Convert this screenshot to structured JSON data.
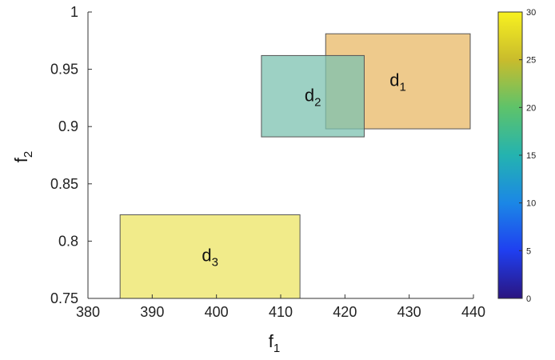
{
  "chart_data": {
    "type": "rectangle-regions",
    "xlabel": {
      "base": "f",
      "sub": "1"
    },
    "ylabel": {
      "base": "f",
      "sub": "2"
    },
    "xlim": [
      380,
      440
    ],
    "ylim": [
      0.75,
      1.0
    ],
    "xticks": [
      "380",
      "390",
      "400",
      "410",
      "420",
      "430",
      "440"
    ],
    "xtick_values": [
      380,
      390,
      400,
      410,
      420,
      430,
      440
    ],
    "yticks": [
      "0.75",
      "0.8",
      "0.85",
      "0.9",
      "0.95",
      "1"
    ],
    "ytick_values": [
      0.75,
      0.8,
      0.85,
      0.9,
      0.95,
      1.0
    ],
    "grid": false,
    "regions": [
      {
        "label": {
          "base": "d",
          "sub": "1"
        },
        "x": [
          417,
          439.5
        ],
        "y": [
          0.898,
          0.981
        ],
        "value": 25,
        "color": "#e8b866"
      },
      {
        "label": {
          "base": "d",
          "sub": "2"
        },
        "x": [
          407,
          423
        ],
        "y": [
          0.891,
          0.962
        ],
        "value": 16,
        "color": "#7cc2b0"
      },
      {
        "label": {
          "base": "d",
          "sub": "3"
        },
        "x": [
          385,
          413
        ],
        "y": [
          0.75,
          0.823
        ],
        "value": 30,
        "color": "#ece463"
      }
    ],
    "colorbar": {
      "range": [
        0,
        30
      ],
      "ticks": [
        "0",
        "5",
        "10",
        "15",
        "20",
        "25",
        "30"
      ],
      "tick_values": [
        0,
        5,
        10,
        15,
        20,
        25,
        30
      ],
      "colors": [
        "#2a1580",
        "#1f3ff0",
        "#1b87e6",
        "#24b3b0",
        "#5ec36a",
        "#c9bc2c",
        "#f8f120"
      ]
    }
  }
}
